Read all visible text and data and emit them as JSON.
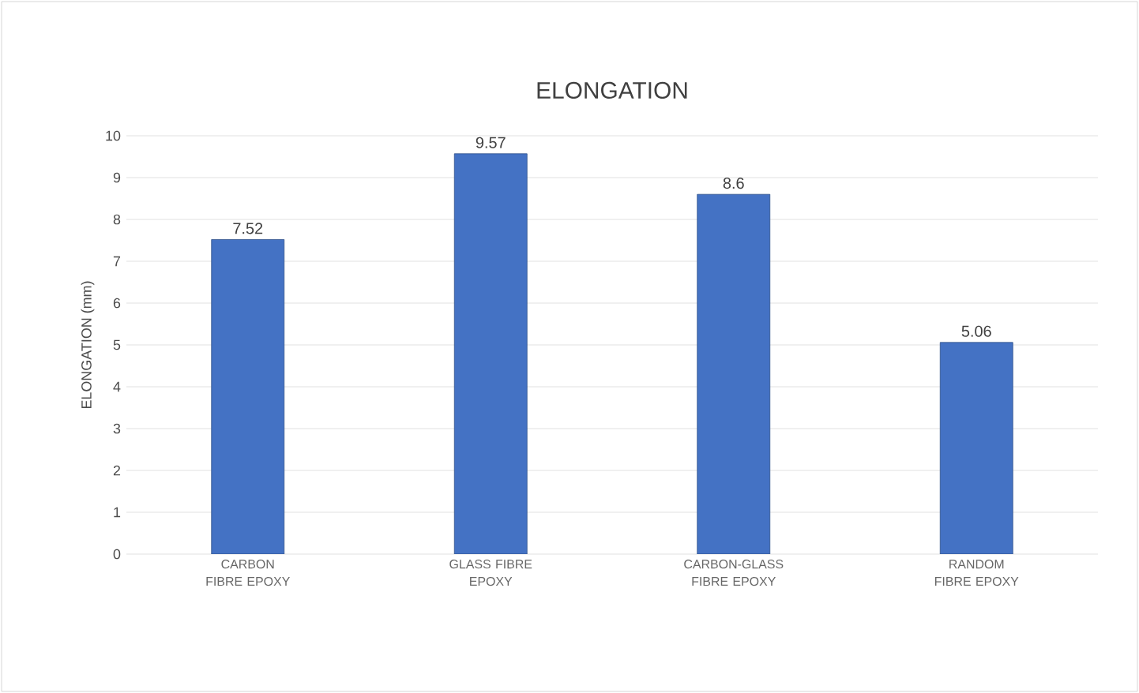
{
  "chart_data": {
    "type": "bar",
    "title": "ELONGATION",
    "ylabel": "ELONGATION (mm)",
    "categories": [
      "CARBON FIBRE EPOXY",
      "GLASS FIBRE EPOXY",
      "CARBON-GLASS FIBRE EPOXY",
      "RANDOM FIBRE EPOXY"
    ],
    "values": [
      7.52,
      9.57,
      8.6,
      5.06
    ],
    "color": "#4472c4",
    "ylim": [
      0,
      10
    ],
    "yticks": [
      0,
      1,
      2,
      3,
      4,
      5,
      6,
      7,
      8,
      9,
      10
    ],
    "grid": "y",
    "data_labels": true
  }
}
